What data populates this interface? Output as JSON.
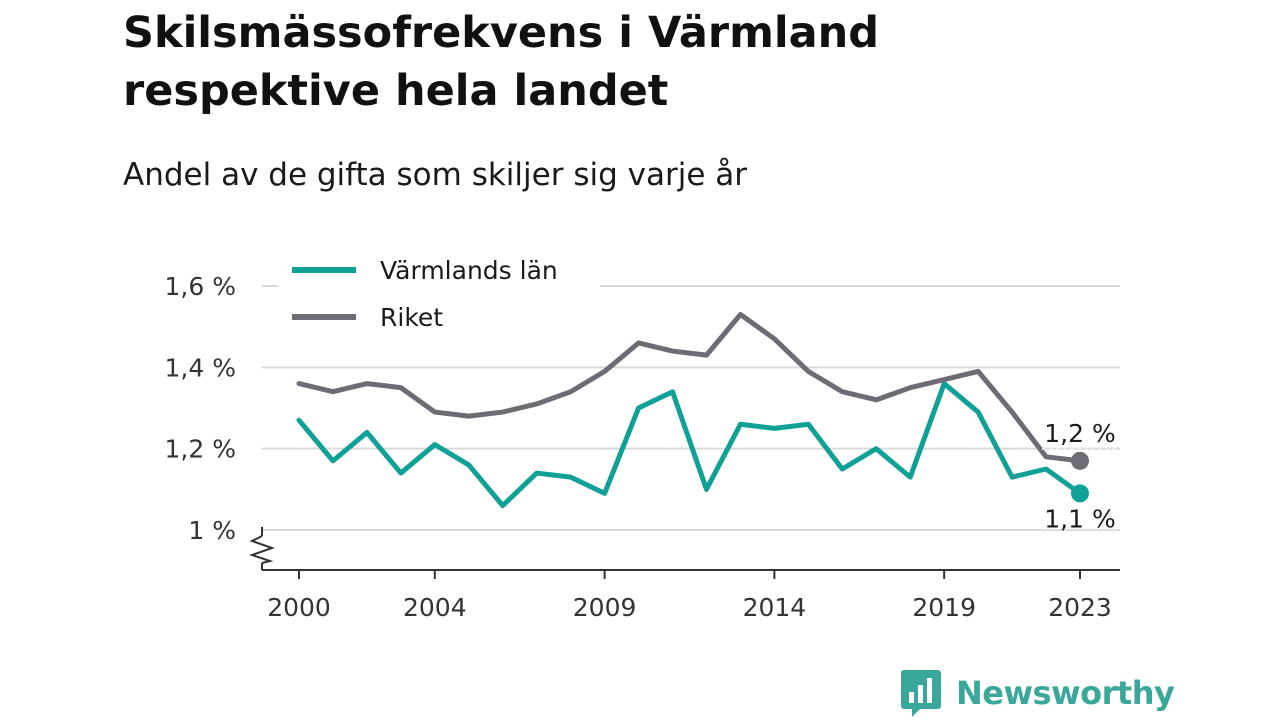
{
  "header": {
    "title": "Skilsmässofrekvens i Värmland respektive hela landet",
    "subtitle": "Andel av de gifta som skiljer sig varje år"
  },
  "brand": {
    "name": "Newsworthy",
    "logo_icon": "bar-chart-speech-bubble-icon",
    "color": "#3aa79b"
  },
  "chart_data": {
    "type": "line",
    "x": [
      2000,
      2001,
      2002,
      2003,
      2004,
      2005,
      2006,
      2007,
      2008,
      2009,
      2010,
      2011,
      2012,
      2013,
      2014,
      2015,
      2016,
      2017,
      2018,
      2019,
      2020,
      2021,
      2022,
      2023
    ],
    "x_tick_values": [
      2000,
      2004,
      2009,
      2014,
      2019,
      2023
    ],
    "x_tick_labels": [
      "2000",
      "2004",
      "2009",
      "2014",
      "2019",
      "2023"
    ],
    "y_ticks": [
      1.0,
      1.2,
      1.4,
      1.6
    ],
    "y_tick_labels": [
      "1 %",
      "1,2 %",
      "1,4 %",
      "1,6 %"
    ],
    "ylim": [
      0.9,
      1.65
    ],
    "y_axis_broken": true,
    "grid": "horizontal",
    "legend_position": "top-left",
    "series": [
      {
        "name": "Värmlands län",
        "color": "#0fa195",
        "values": [
          1.27,
          1.17,
          1.24,
          1.14,
          1.21,
          1.16,
          1.06,
          1.14,
          1.13,
          1.09,
          1.3,
          1.34,
          1.1,
          1.26,
          1.25,
          1.26,
          1.15,
          1.2,
          1.13,
          1.36,
          1.29,
          1.13,
          1.15,
          1.09
        ],
        "end_label": "1,1 %",
        "end_label_position": "below"
      },
      {
        "name": "Riket",
        "color": "#6d6b73",
        "values": [
          1.36,
          1.34,
          1.36,
          1.35,
          1.29,
          1.28,
          1.29,
          1.31,
          1.34,
          1.39,
          1.46,
          1.44,
          1.43,
          1.53,
          1.47,
          1.39,
          1.34,
          1.32,
          1.35,
          1.37,
          1.39,
          1.29,
          1.18,
          1.17
        ],
        "end_label": "1,2 %",
        "end_label_position": "above"
      }
    ]
  }
}
